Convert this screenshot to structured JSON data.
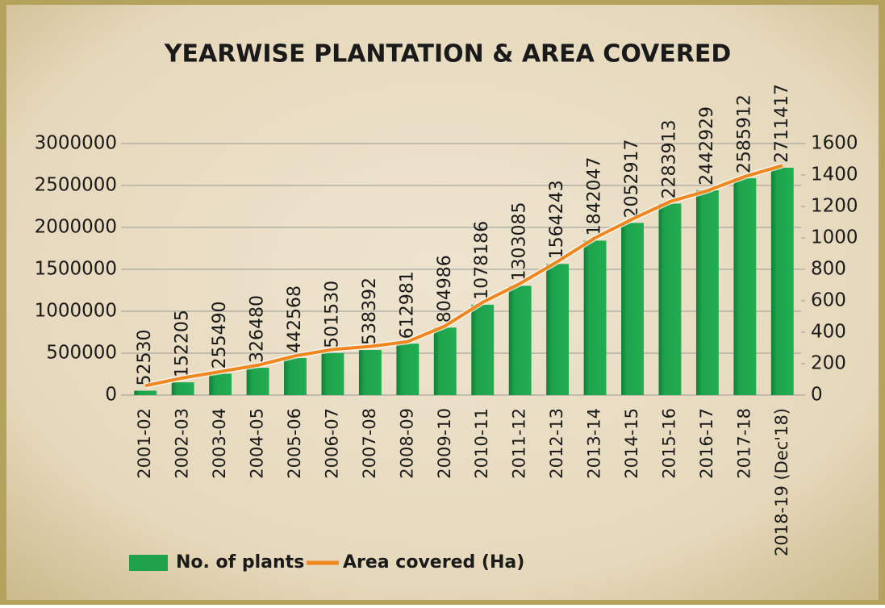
{
  "chart_data": {
    "type": "bar-line",
    "title": "YEARWISE PLANTATION & AREA COVERED",
    "categories": [
      "2001-02",
      "2002-03",
      "2003-04",
      "2004-05",
      "2005-06",
      "2006-07",
      "2007-08",
      "2008-09",
      "2009-10",
      "2010-11",
      "2011-12",
      "2012-13",
      "2013-14",
      "2014-15",
      "2015-16",
      "2016-17",
      "2017-18",
      "2018-19 (Dec'18)"
    ],
    "series": [
      {
        "name": "No. of plants",
        "type": "bar",
        "color": "#1ea34c",
        "values": [
          52530,
          152205,
          255490,
          326480,
          442568,
          501530,
          538392,
          612981,
          804986,
          1078186,
          1303085,
          1564243,
          1842047,
          2052917,
          2283913,
          2442929,
          2585912,
          2711417
        ]
      },
      {
        "name": "Area covered (Ha)",
        "type": "line",
        "axis": "y2",
        "color": "#f0871e",
        "values": [
          60,
          110,
          150,
          190,
          250,
          290,
          310,
          340,
          440,
          590,
          710,
          850,
          1000,
          1120,
          1230,
          1300,
          1390,
          1460
        ]
      }
    ],
    "ylim": [
      0,
      3000000
    ],
    "yticks": [
      0,
      500000,
      1000000,
      1500000,
      2000000,
      2500000,
      3000000
    ],
    "y2lim": [
      0,
      1600
    ],
    "y2ticks": [
      0,
      200,
      400,
      600,
      800,
      1000,
      1200,
      1400,
      1600
    ],
    "grid": true,
    "legend": "bottom"
  }
}
